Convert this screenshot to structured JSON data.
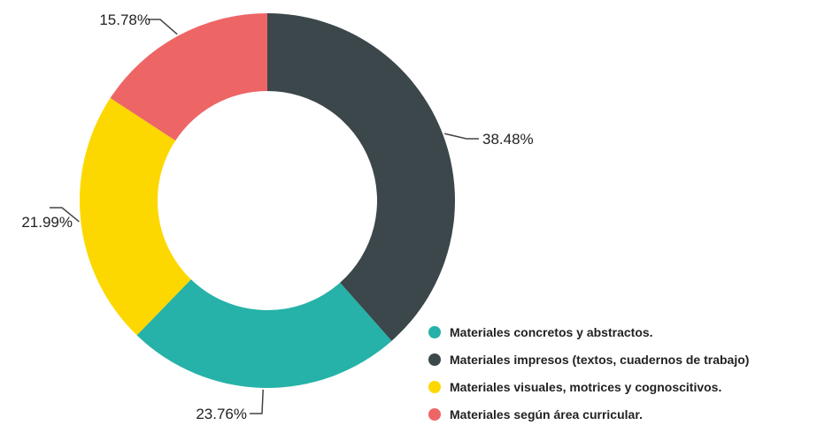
{
  "chart_data": {
    "type": "pie",
    "donut": true,
    "title": "",
    "legend_position": "bottom-right",
    "start_angle_deg": 0,
    "direction": "clockwise",
    "categories": [
      "Materiales impresos (textos, cuadernos de trabajo)",
      "Materiales concretos y abstractos.",
      "Materiales visuales, motrices y cognoscitivos.",
      "Materiales según área curricular."
    ],
    "values": [
      38.48,
      23.76,
      21.99,
      15.78
    ],
    "value_labels": [
      "38.48%",
      "23.76%",
      "21.99%",
      "15.78%"
    ],
    "colors": [
      "#3c474b",
      "#26b2a8",
      "#fcd800",
      "#ee6566"
    ],
    "legend": [
      {
        "label": "Materiales concretos y abstractos.",
        "color": "#26b2a8"
      },
      {
        "label": "Materiales impresos (textos, cuadernos de trabajo)",
        "color": "#3c474b"
      },
      {
        "label": "Materiales visuales, motrices y cognoscitivos.",
        "color": "#fcd800"
      },
      {
        "label": "Materiales según área curricular.",
        "color": "#ee6566"
      }
    ]
  }
}
